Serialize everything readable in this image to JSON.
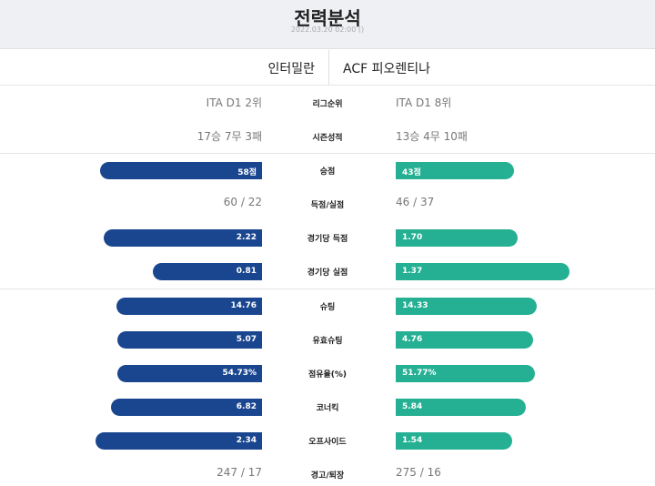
{
  "header": {
    "title": "전력분석",
    "datetime": "2022.03.20 02:00 ()"
  },
  "teams": {
    "home": "인터밀란",
    "away": "ACF 피오렌티나"
  },
  "text_rows": [
    {
      "label": "리그순위",
      "home": "ITA D1 2위",
      "away": "ITA D1 8위"
    },
    {
      "label": "시즌성적",
      "home": "17승 7무 3패",
      "away": "13승 4무 10패"
    }
  ],
  "stats": [
    {
      "label": "승점",
      "type": "bar",
      "home": "58점",
      "away": "43점",
      "home_fill": 0.93,
      "away_fill": 0.68
    },
    {
      "label": "득점/실점",
      "type": "text",
      "home": "60 / 22",
      "away": "46 / 37"
    },
    {
      "label": "경기당 득점",
      "type": "bar",
      "home": "2.22",
      "away": "1.70",
      "home_fill": 0.91,
      "away_fill": 0.7
    },
    {
      "label": "경기당 실점",
      "type": "bar",
      "home": "0.81",
      "away": "1.37",
      "home_fill": 0.63,
      "away_fill": 1.0
    }
  ],
  "shooting": [
    {
      "label": "슈팅",
      "type": "bar",
      "home": "14.76",
      "away": "14.33",
      "home_fill": 0.84,
      "away_fill": 0.81
    },
    {
      "label": "유효슈팅",
      "type": "bar",
      "home": "5.07",
      "away": "4.76",
      "home_fill": 0.83,
      "away_fill": 0.79
    },
    {
      "label": "점유율(%)",
      "type": "bar",
      "home": "54.73%",
      "away": "51.77%",
      "home_fill": 0.83,
      "away_fill": 0.8
    },
    {
      "label": "코너킥",
      "type": "bar",
      "home": "6.82",
      "away": "5.84",
      "home_fill": 0.87,
      "away_fill": 0.75
    },
    {
      "label": "오프사이드",
      "type": "bar",
      "home": "2.34",
      "away": "1.54",
      "home_fill": 0.96,
      "away_fill": 0.67
    },
    {
      "label": "경고/퇴장",
      "type": "text",
      "home": "247 / 17",
      "away": "275 / 16"
    }
  ],
  "colors": {
    "home_bar": "#1a4690",
    "away_bar": "#26b093",
    "header_bg": "#eef0f3"
  }
}
